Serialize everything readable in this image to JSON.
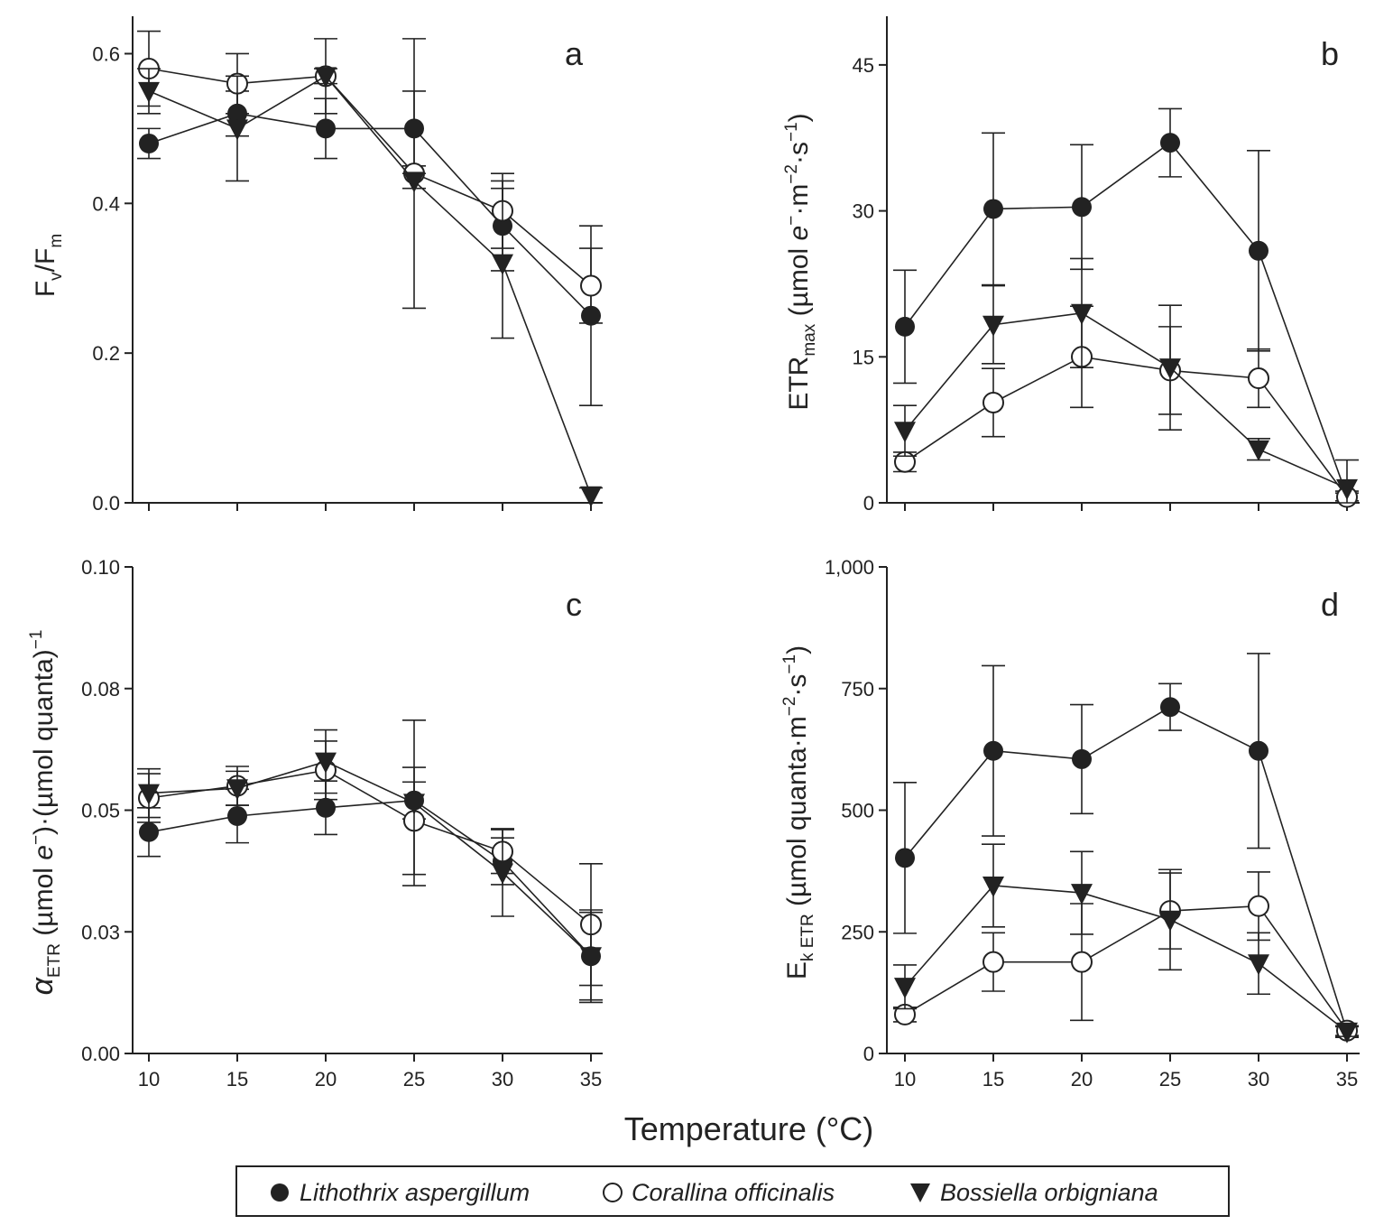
{
  "figure": {
    "xlabel": "Temperature (°C)",
    "legend": [
      {
        "name": "Lithothrix aspergillum",
        "marker": "filled-circle"
      },
      {
        "name": "Corallina officinalis",
        "marker": "open-circle"
      },
      {
        "name": "Bossiella orbigniana",
        "marker": "filled-triangle-down"
      }
    ]
  },
  "chart_data": [
    {
      "type": "line",
      "panel": "a",
      "ylabel": "Fv/Fm",
      "ylabel_parts": {
        "main1": "F",
        "sub1": "v",
        "main2": "/F",
        "sub2": "m"
      },
      "x": [
        10,
        15,
        20,
        25,
        30,
        35
      ],
      "xticks": [
        "10",
        "15",
        "20",
        "25",
        "30",
        "35"
      ],
      "show_xticklabels": false,
      "ylim": [
        0,
        0.65
      ],
      "yticks": [
        0.0,
        0.2,
        0.4,
        0.6
      ],
      "ytick_labels": [
        "0.0",
        "0.2",
        "0.4",
        "0.6"
      ],
      "series": [
        {
          "name": "Lithothrix aspergillum",
          "values": [
            0.48,
            0.52,
            0.5,
            0.5,
            0.37,
            0.25
          ],
          "errors": [
            0.02,
            0.03,
            0.04,
            0.05,
            0.06,
            0.12
          ]
        },
        {
          "name": "Corallina officinalis",
          "values": [
            0.58,
            0.56,
            0.57,
            0.44,
            0.39,
            0.29
          ],
          "errors": [
            0.05,
            0.04,
            0.05,
            0.18,
            0.05,
            0.05
          ]
        },
        {
          "name": "Bossiella orbigniana",
          "values": [
            0.55,
            0.5,
            0.57,
            0.43,
            0.32,
            0.01
          ],
          "errors": [
            0.03,
            0.07,
            0.01,
            0.01,
            0.1,
            0.01
          ]
        }
      ]
    },
    {
      "type": "line",
      "panel": "b",
      "ylabel": "ETRmax (µmol e−·m−2·s−1)",
      "ylabel_parts": {
        "main": "ETR",
        "sub": "max",
        "unit_a": " (µmol ",
        "e": "e",
        "unit_b": "·m",
        "unit_c": "·s",
        "minus": "−",
        "minus2": "−2",
        "minus1": "−1",
        "close": ")"
      },
      "x": [
        10,
        15,
        20,
        25,
        30,
        35
      ],
      "xticks": [
        "10",
        "15",
        "20",
        "25",
        "30",
        "35"
      ],
      "show_xticklabels": false,
      "ylim": [
        0,
        50
      ],
      "yticks": [
        0,
        15,
        30,
        45
      ],
      "ytick_labels": [
        "0",
        "15",
        "30",
        "45"
      ],
      "series": [
        {
          "name": "Lithothrix aspergillum",
          "values": [
            18.1,
            30.2,
            30.4,
            37.0,
            25.9,
            0.7
          ],
          "errors": [
            5.8,
            7.8,
            6.4,
            3.5,
            10.3,
            0.5
          ]
        },
        {
          "name": "Corallina officinalis",
          "values": [
            4.2,
            10.3,
            15.0,
            13.6,
            12.8,
            0.6
          ],
          "errors": [
            1.0,
            3.5,
            5.2,
            4.5,
            3.0,
            0.4
          ]
        },
        {
          "name": "Bossiella orbigniana",
          "values": [
            7.4,
            18.3,
            19.5,
            13.9,
            5.5,
            1.5
          ],
          "errors": [
            2.6,
            4.0,
            5.6,
            6.4,
            1.1,
            2.9
          ]
        }
      ]
    },
    {
      "type": "line",
      "panel": "c",
      "ylabel": "αETR (µmol e−)·(µmol quanta)−1",
      "ylabel_parts": {
        "alpha": "α",
        "sub": "ETR",
        "unit_a": " (µmol ",
        "e": "e",
        "minus": "−",
        "unit_b": ")·(µmol quanta)",
        "minus1": "−1"
      },
      "x": [
        10,
        15,
        20,
        25,
        30,
        35
      ],
      "xticks": [
        "10",
        "15",
        "20",
        "25",
        "30",
        "35"
      ],
      "show_xticklabels": true,
      "ylim": [
        0,
        0.1
      ],
      "ytick_positions": [
        0.0,
        0.025,
        0.05,
        0.075,
        0.1
      ],
      "ytick_labels": [
        "0.00",
        "0.03",
        "0.05",
        "0.08",
        "0.10"
      ],
      "series": [
        {
          "name": "Lithothrix aspergillum",
          "values": [
            0.0455,
            0.0488,
            0.0505,
            0.052,
            0.0395,
            0.02
          ],
          "errors": [
            0.005,
            0.0055,
            0.0055,
            0.0038,
            0.0048,
            0.009
          ]
        },
        {
          "name": "Corallina officinalis",
          "values": [
            0.0525,
            0.055,
            0.0582,
            0.0478,
            0.0415,
            0.0265
          ],
          "errors": [
            0.005,
            0.004,
            0.006,
            0.011,
            0.0045,
            0.0125
          ]
        },
        {
          "name": "Bossiella orbigniana",
          "values": [
            0.0535,
            0.0545,
            0.06,
            0.0515,
            0.0372,
            0.02
          ],
          "errors": [
            0.005,
            0.0035,
            0.0065,
            0.017,
            0.009,
            0.0095
          ]
        }
      ]
    },
    {
      "type": "line",
      "panel": "d",
      "ylabel": "Ek ETR (µmol quanta·m−2·s−1)",
      "ylabel_parts": {
        "main": "E",
        "sub": "k ETR",
        "unit_a": " (µmol quanta·m",
        "unit_b": "·s",
        "minus2": "−2",
        "minus1": "−1",
        "close": ")"
      },
      "x": [
        10,
        15,
        20,
        25,
        30,
        35
      ],
      "xticks": [
        "10",
        "15",
        "20",
        "25",
        "30",
        "35"
      ],
      "show_xticklabels": true,
      "ylim": [
        0,
        1000
      ],
      "yticks": [
        0,
        250,
        500,
        750,
        1000
      ],
      "ytick_labels": [
        "0",
        "250",
        "500",
        "750",
        "1,000"
      ],
      "series": [
        {
          "name": "Lithothrix aspergillum",
          "values": [
            402,
            622,
            605,
            712,
            622,
            45
          ],
          "errors": [
            155,
            175,
            112,
            48,
            200,
            12
          ]
        },
        {
          "name": "Corallina officinalis",
          "values": [
            80,
            188,
            188,
            293,
            303,
            47
          ],
          "errors": [
            15,
            60,
            120,
            78,
            70,
            10
          ]
        },
        {
          "name": "Bossiella orbigniana",
          "values": [
            137,
            345,
            330,
            275,
            185,
            45
          ],
          "errors": [
            45,
            85,
            85,
            103,
            63,
            10
          ]
        }
      ]
    }
  ]
}
